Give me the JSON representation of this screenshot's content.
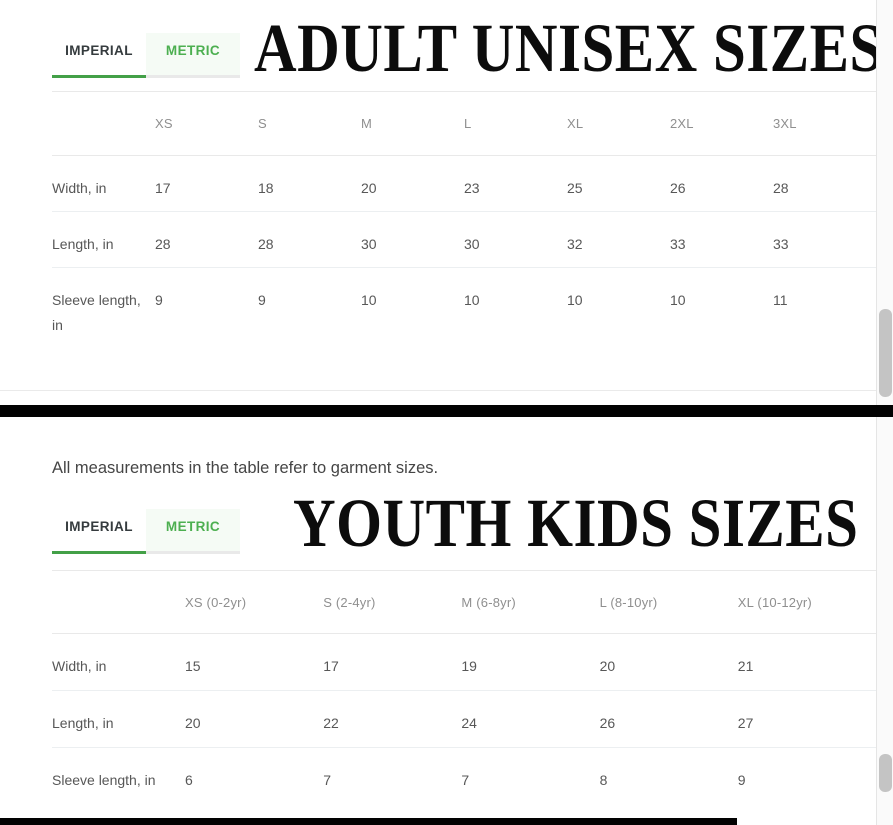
{
  "colors": {
    "accent_green": "#43a047",
    "metric_green": "#4caf50",
    "divider_black": "#020202",
    "scroll_thumb_gray": "#c4c4c4",
    "hairline_gray": "#e9e9e9"
  },
  "adult_section": {
    "title": "ADULT UNISEX SIZES",
    "tabs": [
      {
        "label": "IMPERIAL",
        "active": true
      },
      {
        "label": "METRIC",
        "active": false
      }
    ],
    "table": {
      "columns": [
        "XS",
        "S",
        "M",
        "L",
        "XL",
        "2XL",
        "3XL"
      ],
      "rows": [
        {
          "label": "Width, in",
          "values": [
            "17",
            "18",
            "20",
            "23",
            "25",
            "26",
            "28"
          ]
        },
        {
          "label": "Length, in",
          "values": [
            "28",
            "28",
            "30",
            "30",
            "32",
            "33",
            "33"
          ]
        },
        {
          "label": "Sleeve length, in",
          "values": [
            "9",
            "9",
            "10",
            "10",
            "10",
            "10",
            "11"
          ]
        }
      ]
    }
  },
  "youth_section": {
    "note": "All measurements in the table refer to garment sizes.",
    "title": "YOUTH KIDS SIZES",
    "tabs": [
      {
        "label": "IMPERIAL",
        "active": true
      },
      {
        "label": "METRIC",
        "active": false
      }
    ],
    "table": {
      "columns": [
        "XS (0-2yr)",
        "S (2-4yr)",
        "M (6-8yr)",
        "L (8-10yr)",
        "XL (10-12yr)"
      ],
      "rows": [
        {
          "label": "Width, in",
          "values": [
            "15",
            "17",
            "19",
            "20",
            "21"
          ]
        },
        {
          "label": "Length, in",
          "values": [
            "20",
            "22",
            "24",
            "26",
            "27"
          ]
        },
        {
          "label": "Sleeve length, in",
          "values": [
            "6",
            "7",
            "7",
            "8",
            "9"
          ]
        }
      ]
    }
  }
}
